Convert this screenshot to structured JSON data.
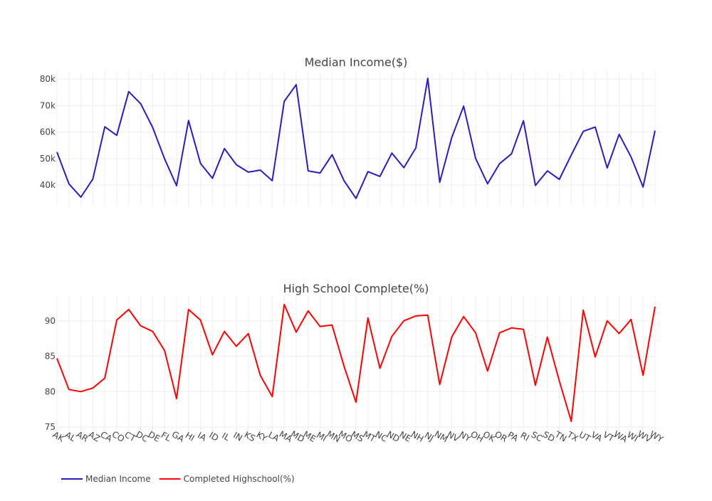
{
  "chart_data": [
    {
      "type": "line",
      "title": "Median Income($)",
      "x": [
        "AK",
        "AL",
        "AR",
        "AZ",
        "CA",
        "CO",
        "CT",
        "DC",
        "DE",
        "FL",
        "GA",
        "HI",
        "IA",
        "ID",
        "IL",
        "IN",
        "KS",
        "KY",
        "LA",
        "MA",
        "MD",
        "ME",
        "MI",
        "MN",
        "MO",
        "MS",
        "MT",
        "NC",
        "ND",
        "NE",
        "NH",
        "NJ",
        "NM",
        "NV",
        "NY",
        "OH",
        "OK",
        "OR",
        "PA",
        "RI",
        "SC",
        "SD",
        "TN",
        "TX",
        "UT",
        "VA",
        "VT",
        "WA",
        "WI",
        "WV",
        "WY"
      ],
      "ylim": [
        32000,
        83000
      ],
      "yticks": [
        40000,
        50000,
        60000,
        70000,
        80000
      ],
      "ytick_labels": [
        "40k",
        "50k",
        "60k",
        "70k",
        "80k"
      ],
      "grid": true,
      "series": [
        {
          "name": "Median Income",
          "color": "#2a1cbf",
          "values": [
            52500,
            40500,
            35500,
            42300,
            62000,
            58800,
            75300,
            70700,
            61800,
            49900,
            39800,
            64400,
            48200,
            42600,
            53800,
            47700,
            44900,
            45700,
            41700,
            71600,
            77900,
            45400,
            44600,
            51500,
            41700,
            35000,
            45100,
            43300,
            52100,
            46600,
            54000,
            80300,
            41100,
            57900,
            69800,
            50100,
            40500,
            48100,
            51800,
            64300,
            39900,
            45400,
            42200,
            51400,
            60300,
            61900,
            46500,
            59200,
            50600,
            39300,
            60600
          ]
        }
      ]
    },
    {
      "type": "line",
      "title": "High School Complete(%)",
      "x": [
        "AK",
        "AL",
        "AR",
        "AZ",
        "CA",
        "CO",
        "CT",
        "DC",
        "DE",
        "FL",
        "GA",
        "HI",
        "IA",
        "ID",
        "IL",
        "IN",
        "KS",
        "KY",
        "LA",
        "MA",
        "MD",
        "ME",
        "MI",
        "MN",
        "MO",
        "MS",
        "MT",
        "NC",
        "ND",
        "NE",
        "NH",
        "NJ",
        "NM",
        "NV",
        "NY",
        "OH",
        "OK",
        "OR",
        "PA",
        "RI",
        "SC",
        "SD",
        "TN",
        "TX",
        "UT",
        "VA",
        "VT",
        "WA",
        "WI",
        "WV",
        "WY"
      ],
      "ylim": [
        74.5,
        93.5
      ],
      "yticks": [
        75,
        80,
        85,
        90
      ],
      "ytick_labels": [
        "75",
        "80",
        "85",
        "90"
      ],
      "grid": true,
      "series": [
        {
          "name": "Completed Highschool(%)",
          "color": "#ff0000",
          "values": [
            84.7,
            80.3,
            80.0,
            80.5,
            81.9,
            90.1,
            91.6,
            89.3,
            88.5,
            85.8,
            79.0,
            91.6,
            90.1,
            85.2,
            88.5,
            86.4,
            88.2,
            82.3,
            79.3,
            92.3,
            88.4,
            91.4,
            89.2,
            89.4,
            83.6,
            78.5,
            90.4,
            83.3,
            87.8,
            90.0,
            90.7,
            90.8,
            81.0,
            87.7,
            90.6,
            88.3,
            82.9,
            88.3,
            89.0,
            88.8,
            80.9,
            87.7,
            81.5,
            75.8,
            91.5,
            84.9,
            90.0,
            88.2,
            90.2,
            82.3,
            92.0
          ]
        }
      ]
    }
  ],
  "legend": {
    "placement": "bottom-left",
    "items": [
      {
        "label": "Median Income",
        "color": "#2a1cbf"
      },
      {
        "label": "Completed Highschool(%)",
        "color": "#ff0000"
      }
    ]
  }
}
